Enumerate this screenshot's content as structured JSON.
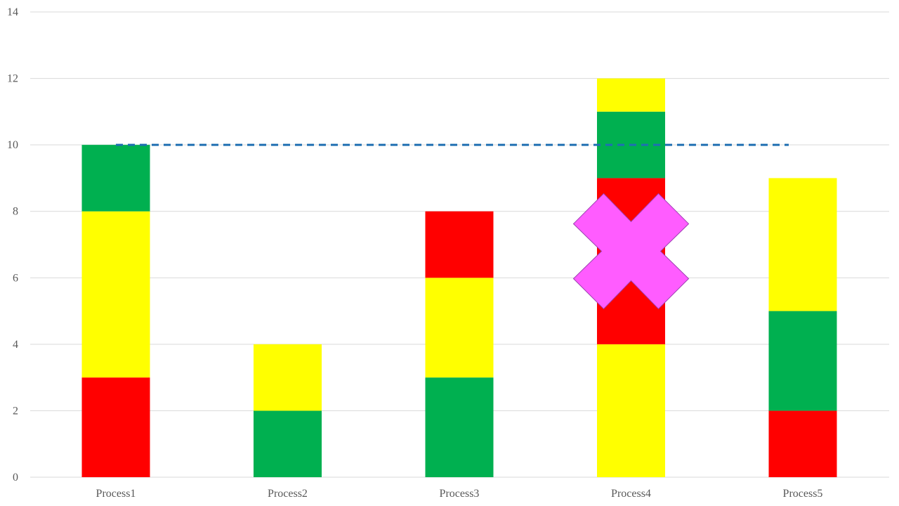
{
  "chart_data": {
    "type": "bar",
    "stacked": true,
    "categories": [
      "Process1",
      "Process2",
      "Process3",
      "Process4",
      "Process5"
    ],
    "ylim": [
      0,
      14
    ],
    "yticks": [
      0,
      2,
      4,
      6,
      8,
      10,
      12,
      14
    ],
    "grid": true,
    "stacks": [
      [
        {
          "value": 3,
          "color": "#ff0000"
        },
        {
          "value": 5,
          "color": "#ffff00"
        },
        {
          "value": 2,
          "color": "#00b050"
        }
      ],
      [
        {
          "value": 2,
          "color": "#00b050"
        },
        {
          "value": 2,
          "color": "#ffff00"
        }
      ],
      [
        {
          "value": 3,
          "color": "#00b050"
        },
        {
          "value": 3,
          "color": "#ffff00"
        },
        {
          "value": 2,
          "color": "#ff0000"
        }
      ],
      [
        {
          "value": 4,
          "color": "#ffff00"
        },
        {
          "value": 5,
          "color": "#ff0000"
        },
        {
          "value": 2,
          "color": "#00b050"
        },
        {
          "value": 1,
          "color": "#ffff00"
        }
      ],
      [
        {
          "value": 2,
          "color": "#ff0000"
        },
        {
          "value": 3,
          "color": "#00b050"
        },
        {
          "value": 4,
          "color": "#ffff00"
        }
      ]
    ],
    "target_line": {
      "value": 10,
      "from": "Process1",
      "to": "Process5",
      "style": "dashed",
      "color": "#1f6fb2"
    },
    "annotations": [
      {
        "type": "x-mark",
        "category": "Process4",
        "y_center": 6.8,
        "color": "#ff5cff"
      }
    ]
  }
}
